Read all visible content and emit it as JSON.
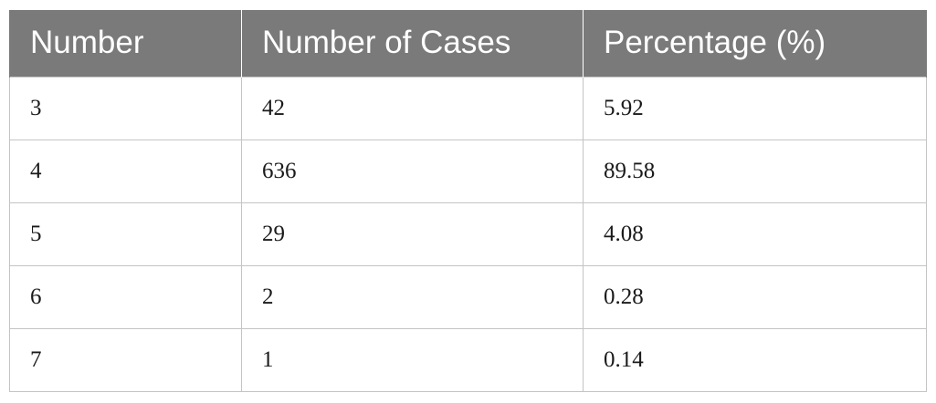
{
  "table": {
    "headers": [
      "Number",
      "Number of Cases",
      "Percentage (%)"
    ],
    "rows": [
      [
        "3",
        "42",
        "5.92"
      ],
      [
        "4",
        "636",
        "89.58"
      ],
      [
        "5",
        "29",
        "4.08"
      ],
      [
        "6",
        "2",
        "0.28"
      ],
      [
        "7",
        "1",
        "0.14"
      ]
    ]
  },
  "colors": {
    "header_bg": "#7a7a7a",
    "header_text": "#ffffff",
    "border": "#c4c4c4",
    "cell_text": "#1a1a1a"
  }
}
